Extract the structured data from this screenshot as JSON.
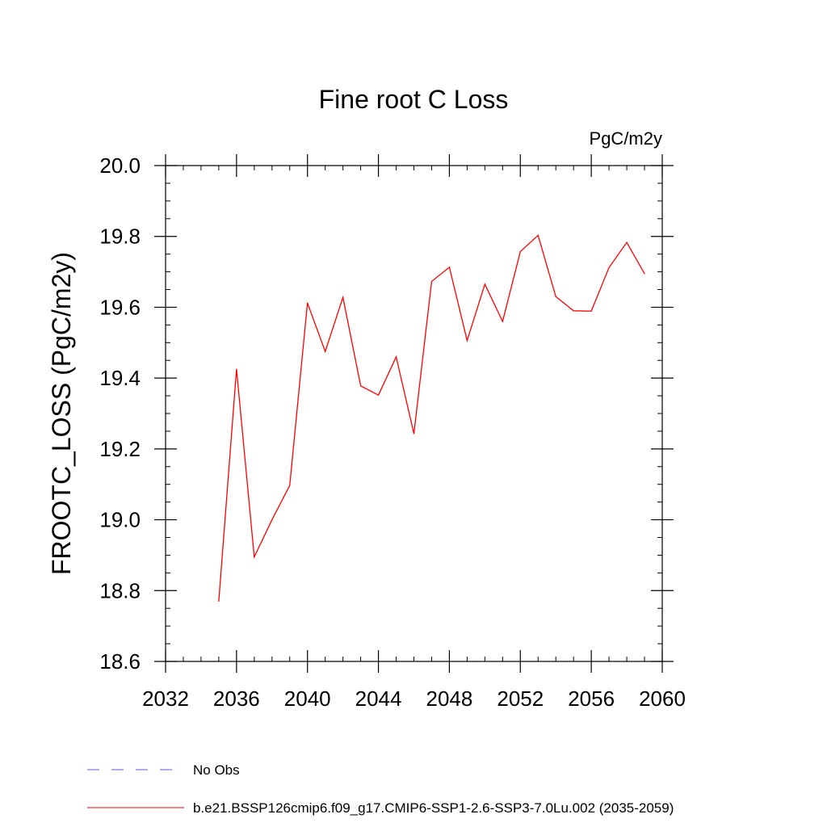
{
  "chart_data": {
    "type": "line",
    "title": "Fine root C Loss",
    "units": "PgC/m2y",
    "ylabel": "FROOTC_LOSS  (PgC/m2y)",
    "xlabel": "",
    "xlim": [
      2032,
      2060
    ],
    "ylim": [
      18.6,
      20.0
    ],
    "x_ticks": [
      2032,
      2036,
      2040,
      2044,
      2048,
      2052,
      2056,
      2060
    ],
    "x_tick_labels": [
      "2032",
      "2036",
      "2040",
      "2044",
      "2048",
      "2052",
      "2056",
      "2060"
    ],
    "y_ticks": [
      18.6,
      18.8,
      19.0,
      19.2,
      19.4,
      19.6,
      19.8,
      20.0
    ],
    "y_tick_labels": [
      "18.6",
      "18.8",
      "19.0",
      "19.2",
      "19.4",
      "19.6",
      "19.8",
      "20.0"
    ],
    "grid": false,
    "legend_position": "bottom",
    "series": [
      {
        "name": "b.e21.BSSP126cmip6.f09_g17.CMIP6-SSP1-2.6-SSP3-7.0Lu.002 (2035-2059)",
        "color": "#ff0000",
        "x": [
          2035,
          2036,
          2037,
          2038,
          2039,
          2040,
          2041,
          2042,
          2043,
          2044,
          2045,
          2046,
          2047,
          2048,
          2049,
          2050,
          2051,
          2052,
          2053,
          2054,
          2055,
          2056,
          2057,
          2058,
          2059
        ],
        "values": [
          18.77,
          19.425,
          18.895,
          19.0,
          19.097,
          19.612,
          19.475,
          19.628,
          19.378,
          19.352,
          19.46,
          19.243,
          19.673,
          19.713,
          19.506,
          19.665,
          19.56,
          19.757,
          19.803,
          19.63,
          19.59,
          19.589,
          19.712,
          19.783,
          19.695
        ]
      }
    ],
    "legend": [
      {
        "label": "No Obs",
        "style": "dashed",
        "color": "#6a5acd"
      },
      {
        "label": "b.e21.BSSP126cmip6.f09_g17.CMIP6-SSP1-2.6-SSP3-7.0Lu.002 (2035-2059)",
        "style": "solid",
        "color": "#ff0000"
      }
    ]
  }
}
